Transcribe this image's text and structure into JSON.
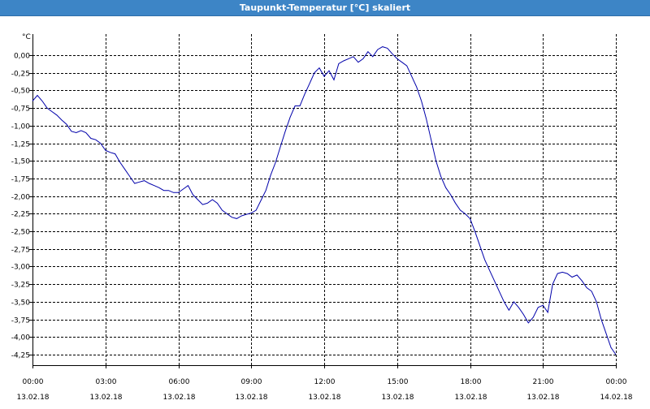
{
  "window": {
    "title": "Taupunkt-Temperatur [°C] skaliert"
  },
  "chart_data": {
    "type": "line",
    "title": "Taupunkt-Temperatur [°C] skaliert",
    "ylabel": "°C",
    "xlabel": "",
    "ylim": [
      -4.4,
      0.3
    ],
    "xlim": [
      0,
      24
    ],
    "grid": true,
    "y_ticks": [
      "0,00",
      "-0,25",
      "-0,50",
      "-0,75",
      "-1,00",
      "-1,25",
      "-1,50",
      "-1,75",
      "-2,00",
      "-2,25",
      "-2,50",
      "-2,75",
      "-3,00",
      "-3,25",
      "-3,50",
      "-3,75",
      "-4,00",
      "-4,25"
    ],
    "y_tick_values": [
      0,
      -0.25,
      -0.5,
      -0.75,
      -1,
      -1.25,
      -1.5,
      -1.75,
      -2,
      -2.25,
      -2.5,
      -2.75,
      -3,
      -3.25,
      -3.5,
      -3.75,
      -4,
      -4.25
    ],
    "x_ticks": [
      {
        "value": 0,
        "time": "00:00",
        "date": "13.02.18"
      },
      {
        "value": 3,
        "time": "03:00",
        "date": "13.02.18"
      },
      {
        "value": 6,
        "time": "06:00",
        "date": "13.02.18"
      },
      {
        "value": 9,
        "time": "09:00",
        "date": "13.02.18"
      },
      {
        "value": 12,
        "time": "12:00",
        "date": "13.02.18"
      },
      {
        "value": 15,
        "time": "15:00",
        "date": "13.02.18"
      },
      {
        "value": 18,
        "time": "18:00",
        "date": "13.02.18"
      },
      {
        "value": 21,
        "time": "21:00",
        "date": "13.02.18"
      },
      {
        "value": 24,
        "time": "00:00",
        "date": "14.02.18"
      }
    ],
    "series": [
      {
        "color": "#0000aa",
        "x": [
          0,
          0.2,
          0.4,
          0.6,
          0.8,
          1.0,
          1.2,
          1.4,
          1.6,
          1.8,
          2.0,
          2.2,
          2.4,
          2.6,
          2.8,
          3.0,
          3.2,
          3.4,
          3.6,
          3.8,
          4.0,
          4.2,
          4.4,
          4.6,
          4.8,
          5.0,
          5.2,
          5.4,
          5.6,
          5.8,
          6.0,
          6.2,
          6.4,
          6.6,
          6.8,
          7.0,
          7.2,
          7.4,
          7.6,
          7.8,
          8.0,
          8.2,
          8.4,
          8.6,
          8.8,
          9.0,
          9.2,
          9.4,
          9.6,
          9.8,
          10.0,
          10.2,
          10.4,
          10.6,
          10.8,
          11.0,
          11.2,
          11.4,
          11.6,
          11.8,
          12.0,
          12.2,
          12.4,
          12.6,
          12.8,
          13.0,
          13.2,
          13.4,
          13.6,
          13.8,
          14.0,
          14.2,
          14.4,
          14.6,
          14.8,
          15.0,
          15.2,
          15.4,
          15.6,
          15.8,
          16.0,
          16.2,
          16.4,
          16.6,
          16.8,
          17.0,
          17.2,
          17.4,
          17.6,
          17.8,
          18.0,
          18.2,
          18.4,
          18.6,
          18.8,
          19.0,
          19.2,
          19.4,
          19.6,
          19.8,
          20.0,
          20.2,
          20.4,
          20.6,
          20.8,
          21.0,
          21.2,
          21.4,
          21.6,
          21.8,
          22.0,
          22.2,
          22.4,
          22.6,
          22.8,
          23.0,
          23.2,
          23.4,
          23.6,
          23.8,
          24.0
        ],
        "values": [
          -0.65,
          -0.57,
          -0.65,
          -0.75,
          -0.8,
          -0.85,
          -0.92,
          -0.98,
          -1.08,
          -1.1,
          -1.07,
          -1.1,
          -1.18,
          -1.2,
          -1.25,
          -1.35,
          -1.38,
          -1.4,
          -1.52,
          -1.62,
          -1.72,
          -1.82,
          -1.8,
          -1.78,
          -1.82,
          -1.85,
          -1.88,
          -1.92,
          -1.92,
          -1.95,
          -1.95,
          -1.9,
          -1.85,
          -1.98,
          -2.05,
          -2.12,
          -2.1,
          -2.05,
          -2.1,
          -2.2,
          -2.25,
          -2.3,
          -2.32,
          -2.28,
          -2.26,
          -2.24,
          -2.2,
          -2.06,
          -1.92,
          -1.7,
          -1.52,
          -1.3,
          -1.08,
          -0.88,
          -0.72,
          -0.72,
          -0.55,
          -0.4,
          -0.25,
          -0.18,
          -0.3,
          -0.22,
          -0.35,
          -0.12,
          -0.08,
          -0.05,
          -0.02,
          -0.1,
          -0.05,
          0.05,
          -0.02,
          0.08,
          0.12,
          0.1,
          0.02,
          -0.05,
          -0.1,
          -0.15,
          -0.3,
          -0.45,
          -0.65,
          -0.9,
          -1.2,
          -1.5,
          -1.72,
          -1.88,
          -1.98,
          -2.1,
          -2.2,
          -2.25,
          -2.32,
          -2.5,
          -2.7,
          -2.9,
          -3.05,
          -3.2,
          -3.35,
          -3.5,
          -3.62,
          -3.5,
          -3.58,
          -3.68,
          -3.8,
          -3.72,
          -3.58,
          -3.55,
          -3.65,
          -3.25,
          -3.1,
          -3.08,
          -3.1,
          -3.15,
          -3.12,
          -3.2,
          -3.3,
          -3.35,
          -3.5,
          -3.75,
          -3.95,
          -4.15,
          -4.25
        ]
      }
    ]
  }
}
